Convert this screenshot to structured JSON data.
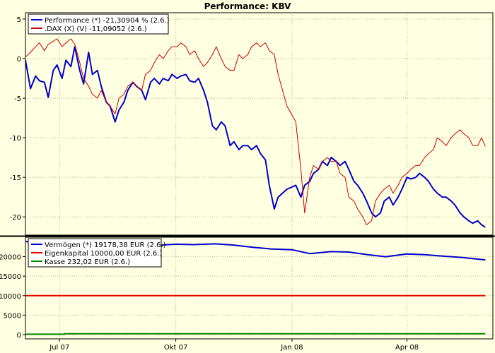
{
  "chart_data": [
    {
      "type": "line",
      "title": "Performance: KBV",
      "xlabel": "",
      "ylabel": "",
      "ylim": [
        -22.3,
        5.8
      ],
      "yticks": [
        5,
        0,
        -5,
        -10,
        -15,
        -20
      ],
      "ytick_labels": [
        "5",
        "0",
        "-5",
        "-10",
        "-15",
        "-20"
      ],
      "grid": true,
      "legend_position": "top-left",
      "series": [
        {
          "name": "Performance (*) -21,30904 % (2.6.)",
          "color": "#0000cc",
          "x": [
            "2007-06-04",
            "2007-06-08",
            "2007-06-12",
            "2007-06-15",
            "2007-06-19",
            "2007-06-22",
            "2007-06-26",
            "2007-06-29",
            "2007-07-03",
            "2007-07-06",
            "2007-07-10",
            "2007-07-13",
            "2007-07-17",
            "2007-07-20",
            "2007-07-24",
            "2007-07-27",
            "2007-07-31",
            "2007-08-03",
            "2007-08-07",
            "2007-08-10",
            "2007-08-14",
            "2007-08-17",
            "2007-08-21",
            "2007-08-24",
            "2007-08-28",
            "2007-08-31",
            "2007-09-04",
            "2007-09-07",
            "2007-09-11",
            "2007-09-14",
            "2007-09-18",
            "2007-09-21",
            "2007-09-25",
            "2007-09-28",
            "2007-10-02",
            "2007-10-05",
            "2007-10-09",
            "2007-10-12",
            "2007-10-16",
            "2007-10-19",
            "2007-10-23",
            "2007-10-26",
            "2007-10-30",
            "2007-11-02",
            "2007-11-06",
            "2007-11-09",
            "2007-11-13",
            "2007-11-16",
            "2007-11-20",
            "2007-11-23",
            "2007-11-27",
            "2007-11-30",
            "2007-12-04",
            "2007-12-07",
            "2007-12-11",
            "2007-12-14",
            "2007-12-18",
            "2007-12-21",
            "2007-12-28",
            "2008-01-04",
            "2008-01-08",
            "2008-01-11",
            "2008-01-15",
            "2008-01-18",
            "2008-01-22",
            "2008-01-25",
            "2008-01-29",
            "2008-02-01",
            "2008-02-05",
            "2008-02-08",
            "2008-02-12",
            "2008-02-15",
            "2008-02-19",
            "2008-02-22",
            "2008-02-26",
            "2008-02-29",
            "2008-03-04",
            "2008-03-07",
            "2008-03-11",
            "2008-03-14",
            "2008-03-18",
            "2008-03-21",
            "2008-03-25",
            "2008-03-28",
            "2008-04-01",
            "2008-04-04",
            "2008-04-08",
            "2008-04-11",
            "2008-04-15",
            "2008-04-18",
            "2008-04-22",
            "2008-04-25",
            "2008-04-29",
            "2008-05-02",
            "2008-05-06",
            "2008-05-09",
            "2008-05-13",
            "2008-05-16",
            "2008-05-20",
            "2008-05-23",
            "2008-05-27",
            "2008-05-30",
            "2008-06-02"
          ],
          "y": [
            -0.2,
            -3.8,
            -2.2,
            -2.8,
            -3.0,
            -4.9,
            -1.5,
            -0.8,
            -2.5,
            -0.2,
            -1.0,
            1.5,
            -1.5,
            -3.2,
            0.8,
            -2.0,
            -1.5,
            -3.5,
            -5.5,
            -6.0,
            -8.0,
            -6.5,
            -5.5,
            -4.0,
            -3.0,
            -3.5,
            -4.0,
            -5.2,
            -3.0,
            -2.5,
            -3.2,
            -2.5,
            -2.8,
            -2.0,
            -2.5,
            -2.2,
            -2.0,
            -2.8,
            -3.0,
            -2.5,
            -4.0,
            -5.5,
            -8.5,
            -9.0,
            -8.0,
            -8.5,
            -11.0,
            -10.5,
            -11.5,
            -11.0,
            -11.0,
            -11.5,
            -11.0,
            -12.0,
            -12.8,
            -16.0,
            -19.0,
            -17.5,
            -16.5,
            -16.0,
            -17.5,
            -16.0,
            -15.5,
            -14.5,
            -14.0,
            -13.0,
            -13.5,
            -12.5,
            -13.0,
            -13.5,
            -13.0,
            -14.0,
            -15.5,
            -16.0,
            -17.0,
            -18.0,
            -19.5,
            -20.0,
            -19.5,
            -18.0,
            -17.5,
            -18.5,
            -17.5,
            -16.5,
            -15.0,
            -15.2,
            -15.0,
            -14.5,
            -15.0,
            -15.5,
            -16.5,
            -17.0,
            -17.5,
            -17.5,
            -18.0,
            -18.5,
            -19.5,
            -20.0,
            -20.5,
            -20.8,
            -20.5,
            -21.0,
            -21.3
          ]
        },
        {
          "name": ".DAX (X) (V) -11,09052 (2.6.)",
          "color": "#cc0000",
          "x": [
            "2007-06-04",
            "2007-06-08",
            "2007-06-12",
            "2007-06-15",
            "2007-06-19",
            "2007-06-22",
            "2007-06-26",
            "2007-06-29",
            "2007-07-03",
            "2007-07-06",
            "2007-07-10",
            "2007-07-13",
            "2007-07-17",
            "2007-07-20",
            "2007-07-24",
            "2007-07-27",
            "2007-07-31",
            "2007-08-03",
            "2007-08-07",
            "2007-08-10",
            "2007-08-14",
            "2007-08-17",
            "2007-08-21",
            "2007-08-24",
            "2007-08-28",
            "2007-08-31",
            "2007-09-04",
            "2007-09-07",
            "2007-09-11",
            "2007-09-14",
            "2007-09-18",
            "2007-09-21",
            "2007-09-25",
            "2007-09-28",
            "2007-10-02",
            "2007-10-05",
            "2007-10-09",
            "2007-10-12",
            "2007-10-16",
            "2007-10-19",
            "2007-10-23",
            "2007-10-26",
            "2007-10-30",
            "2007-11-02",
            "2007-11-06",
            "2007-11-09",
            "2007-11-13",
            "2007-11-16",
            "2007-11-20",
            "2007-11-23",
            "2007-11-27",
            "2007-11-30",
            "2007-12-04",
            "2007-12-07",
            "2007-12-11",
            "2007-12-14",
            "2007-12-18",
            "2007-12-21",
            "2007-12-28",
            "2008-01-04",
            "2008-01-08",
            "2008-01-11",
            "2008-01-15",
            "2008-01-18",
            "2008-01-22",
            "2008-01-25",
            "2008-01-29",
            "2008-02-01",
            "2008-02-05",
            "2008-02-08",
            "2008-02-12",
            "2008-02-15",
            "2008-02-19",
            "2008-02-22",
            "2008-02-26",
            "2008-02-29",
            "2008-03-04",
            "2008-03-07",
            "2008-03-11",
            "2008-03-14",
            "2008-03-18",
            "2008-03-21",
            "2008-03-25",
            "2008-03-28",
            "2008-04-01",
            "2008-04-04",
            "2008-04-08",
            "2008-04-11",
            "2008-04-15",
            "2008-04-18",
            "2008-04-22",
            "2008-04-25",
            "2008-04-29",
            "2008-05-02",
            "2008-05-06",
            "2008-05-09",
            "2008-05-13",
            "2008-05-16",
            "2008-05-20",
            "2008-05-23",
            "2008-05-27",
            "2008-05-30",
            "2008-06-02"
          ],
          "y": [
            0.2,
            0.8,
            1.5,
            2.0,
            1.0,
            1.8,
            2.2,
            2.5,
            1.5,
            2.0,
            2.5,
            1.8,
            -0.5,
            -2.5,
            -3.5,
            -4.5,
            -5.0,
            -4.0,
            -5.5,
            -6.0,
            -7.0,
            -5.0,
            -4.5,
            -3.5,
            -3.0,
            -3.5,
            -4.0,
            -2.0,
            -1.5,
            -0.5,
            0.5,
            0.0,
            1.0,
            1.5,
            1.5,
            2.0,
            1.5,
            0.5,
            1.0,
            0.0,
            -1.0,
            -0.5,
            0.5,
            1.5,
            0.0,
            -1.0,
            -1.5,
            -1.5,
            0.5,
            0.0,
            0.5,
            1.5,
            2.0,
            1.5,
            2.0,
            1.0,
            0.5,
            -2.0,
            -6.0,
            -8.0,
            -14.0,
            -19.5,
            -15.0,
            -13.5,
            -14.0,
            -13.0,
            -12.5,
            -13.0,
            -13.0,
            -14.5,
            -15.0,
            -17.5,
            -18.0,
            -19.0,
            -20.0,
            -21.0,
            -20.5,
            -18.0,
            -17.0,
            -16.5,
            -16.0,
            -17.0,
            -16.0,
            -15.0,
            -14.5,
            -14.0,
            -13.5,
            -13.5,
            -12.5,
            -12.0,
            -11.5,
            -10.0,
            -10.5,
            -11.0,
            -10.0,
            -9.5,
            -9.0,
            -9.5,
            -10.0,
            -11.0,
            -11.0,
            -10.0,
            -11.1
          ]
        }
      ]
    },
    {
      "type": "line",
      "title": "",
      "xlabel": "",
      "ylabel": "",
      "ylim": [
        -1100,
        25000
      ],
      "yticks": [
        0,
        5000,
        10000,
        15000,
        20000
      ],
      "ytick_labels": [
        "0",
        "5000",
        "10000",
        "15000",
        "20000"
      ],
      "grid": true,
      "legend_position": "top-left",
      "x_ticks": [
        "2007-07-01",
        "2007-10-01",
        "2008-01-01",
        "2008-04-01"
      ],
      "x_tick_labels": [
        "Jul 07",
        "Okt 07",
        "Jan 08",
        "Apr 08"
      ],
      "series": [
        {
          "name": "Vermögen (*) 19178,38 EUR (2.6.)",
          "color": "#0000cc",
          "x": [
            "2007-06-04",
            "2007-06-15",
            "2007-07-01",
            "2007-07-15",
            "2007-08-01",
            "2007-08-15",
            "2007-09-01",
            "2007-09-15",
            "2007-10-01",
            "2007-10-15",
            "2007-11-01",
            "2007-11-15",
            "2007-12-01",
            "2007-12-15",
            "2008-01-01",
            "2008-01-15",
            "2008-02-01",
            "2008-02-15",
            "2008-03-01",
            "2008-03-15",
            "2008-04-01",
            "2008-04-15",
            "2008-05-01",
            "2008-05-15",
            "2008-06-02"
          ],
          "y": [
            23900,
            23700,
            23500,
            23600,
            23000,
            22700,
            23000,
            22900,
            23200,
            23100,
            23300,
            23000,
            22400,
            22000,
            21800,
            20800,
            21300,
            21200,
            20500,
            20000,
            20700,
            20500,
            20100,
            19800,
            19178
          ]
        },
        {
          "name": "Eigenkapital 10000,00 EUR (2.6.)",
          "color": "#ee0000",
          "x": [
            "2007-06-04",
            "2008-06-02"
          ],
          "y": [
            10000,
            10000
          ]
        },
        {
          "name": "Kasse 232,02 EUR (2.6.)",
          "color": "#008800",
          "x": [
            "2007-06-04",
            "2007-07-05",
            "2007-07-05",
            "2008-06-02"
          ],
          "y": [
            100,
            100,
            232,
            232
          ]
        }
      ]
    }
  ]
}
